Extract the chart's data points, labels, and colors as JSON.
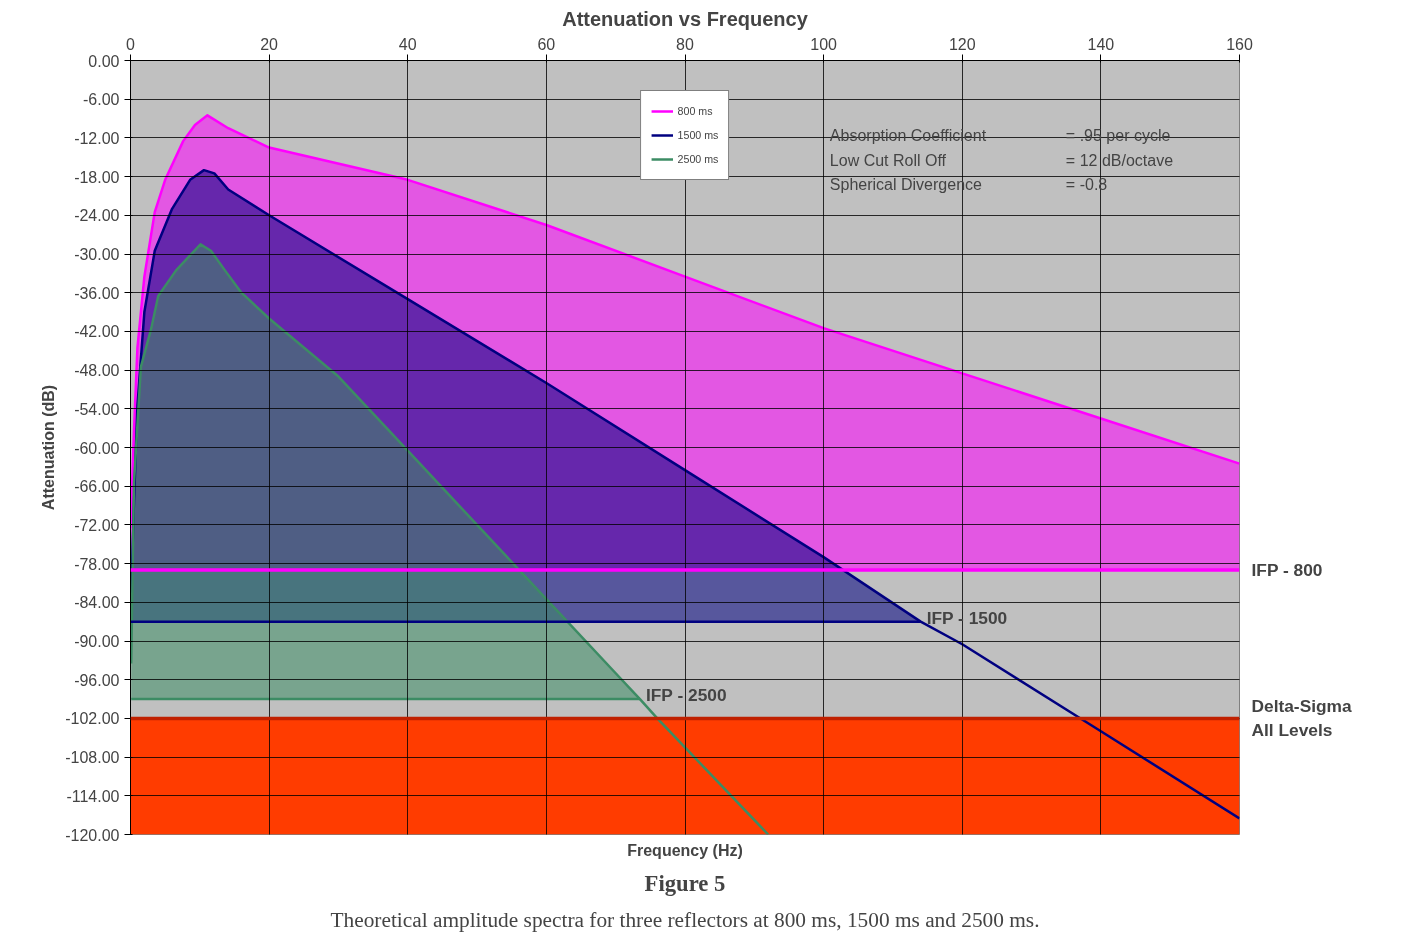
{
  "chart_data": {
    "type": "line",
    "title": "Attenuation vs Frequency",
    "xlabel": "Frequency (Hz)",
    "ylabel": "Attenuation (dB)",
    "xlim": [
      0,
      160
    ],
    "xticks": [
      0,
      20,
      40,
      60,
      80,
      100,
      120,
      140,
      160
    ],
    "ylim": [
      -120,
      0
    ],
    "yticks": [
      {
        "value": 0,
        "label": "0.00"
      },
      {
        "value": -6,
        "label": "-6.00"
      },
      {
        "value": -12,
        "label": "-12.00"
      },
      {
        "value": -18,
        "label": "-18.00"
      },
      {
        "value": -24,
        "label": "-24.00"
      },
      {
        "value": -30,
        "label": "-30.00"
      },
      {
        "value": -36,
        "label": "-36.00"
      },
      {
        "value": -42,
        "label": "-42.00"
      },
      {
        "value": -48,
        "label": "-48.00"
      },
      {
        "value": -54,
        "label": "-54.00"
      },
      {
        "value": -60,
        "label": "-60.00"
      },
      {
        "value": -66,
        "label": "-66.00"
      },
      {
        "value": -72,
        "label": "-72.00"
      },
      {
        "value": -78,
        "label": "-78.00"
      },
      {
        "value": -84,
        "label": "-84.00"
      },
      {
        "value": -90,
        "label": "-90.00"
      },
      {
        "value": -96,
        "label": "-96.00"
      },
      {
        "value": -102,
        "label": "-102.00"
      },
      {
        "value": -108,
        "label": "-108.00"
      },
      {
        "value": -114,
        "label": "-114.00"
      },
      {
        "value": -120,
        "label": "-120.00"
      }
    ],
    "grid": true,
    "legend": "top",
    "series": [
      {
        "name": "800 ms",
        "color": "#ff00ff",
        "x": [
          0,
          0.5,
          1,
          2,
          3.5,
          5,
          7.6,
          9.3,
          11.1,
          14.1,
          20,
          40,
          60,
          80,
          100,
          120,
          140,
          160
        ],
        "values": [
          -72.5,
          -57.5,
          -44.5,
          -33.5,
          -23.5,
          -18.5,
          -12.5,
          -10,
          -8.5,
          -10.5,
          -13.5,
          -18.5,
          -25.5,
          -33.5,
          -41.5,
          -48.5,
          -55.5,
          -62.5
        ],
        "upper": [
          -72.5,
          -57.5,
          -44.5,
          -33.5,
          -23.5,
          -18.5,
          -12.5,
          -10,
          -8.5,
          -10.5,
          -13.5,
          -18.5,
          -25.5,
          -33.5,
          -41.5,
          -48.5,
          -55.5,
          -62.5
        ],
        "lower": [
          -79,
          -79,
          -79,
          -79,
          -79,
          -79,
          -79,
          -79,
          -79,
          -79,
          -79,
          -79,
          -79,
          -79,
          -79,
          -79,
          -79,
          -79
        ]
      },
      {
        "name": "1500 ms",
        "color": "#000080",
        "x": [
          0,
          0.5,
          1,
          2,
          3.5,
          6,
          8.6,
          10.6,
          12.1,
          14.1,
          20,
          40,
          60,
          80,
          100,
          114,
          120,
          140,
          160
        ],
        "values": [
          -86.5,
          -68.5,
          -53.5,
          -39,
          -29.5,
          -23,
          -18.5,
          -17,
          -17.5,
          -20,
          -24,
          -37,
          -50,
          -63.5,
          -77,
          -87,
          -90.5,
          -104,
          -117.5
        ],
        "upper": [
          -86.5,
          -68.5,
          -53.5,
          -39,
          -29.5,
          -23,
          -18.5,
          -17,
          -17.5,
          -20,
          -24,
          -37,
          -50,
          -63.5,
          -77,
          -87,
          null,
          null,
          null
        ],
        "lower": [
          -87,
          -87,
          -87,
          -87,
          -87,
          -87,
          -87,
          -87,
          -87,
          -87,
          -87,
          -87,
          -87,
          -87,
          -87,
          -87,
          null,
          null,
          null
        ]
      },
      {
        "name": "2500 ms",
        "color": "#3c8c64",
        "x": [
          0.1,
          0.5,
          1.5,
          3,
          4,
          6.6,
          10.1,
          11.6,
          13.6,
          16,
          20,
          30,
          40,
          50,
          60,
          70,
          73.5,
          76,
          92
        ],
        "values": [
          -93.5,
          -65.5,
          -47.5,
          -41.5,
          -36.5,
          -32.5,
          -28.5,
          -29.5,
          -32.5,
          -36,
          -40,
          -49,
          -60.5,
          -72,
          -83.5,
          -95,
          -99,
          -102,
          -120
        ],
        "upper": [
          -93.5,
          -65.5,
          -47.5,
          -41.5,
          -36.5,
          -32.5,
          -28.5,
          -29.5,
          -32.5,
          -36,
          -40,
          -49,
          -60.5,
          -72,
          -83.5,
          -95,
          -99,
          null,
          null
        ],
        "lower": [
          -99,
          -99,
          -99,
          -99,
          -99,
          -99,
          -99,
          -99,
          -99,
          -99,
          -99,
          -99,
          -99,
          -99,
          -99,
          -99,
          -99,
          null,
          null
        ]
      },
      {
        "color": "#000080",
        "x": [
          0,
          114
        ],
        "values": [
          -87,
          -87
        ]
      },
      {
        "color": "#3c8c64",
        "x": [
          0.1,
          73.5
        ],
        "values": [
          -99,
          -99
        ]
      }
    ],
    "ref_lines": [
      {
        "axis": "y",
        "value": -79,
        "label": "IFP - 800",
        "color": "#ff00ff"
      },
      {
        "axis": "y",
        "value": -102,
        "label": null,
        "color": "#c02000"
      }
    ],
    "bands": [
      {
        "axis": "y",
        "from": -120,
        "to": -102,
        "label": "Delta-Sigma\nAll Levels",
        "color": "#ff3c00"
      }
    ],
    "annotations": [
      "Absorption Coefficient",
      "= .95 per cycle",
      "Low Cut Roll Off",
      "= 12 dB/octave",
      "Spherical Divergence",
      "= -0.8",
      "Figure 5",
      "Theoretical amplitude spectra for three reflectors at 800 ms, 1500 ms and 2500 ms.",
      {
        "text": "IFP - 1500",
        "x": 114,
        "y": -87
      },
      {
        "text": "IFP - 2500",
        "x": 73.5,
        "y": -99
      }
    ]
  }
}
